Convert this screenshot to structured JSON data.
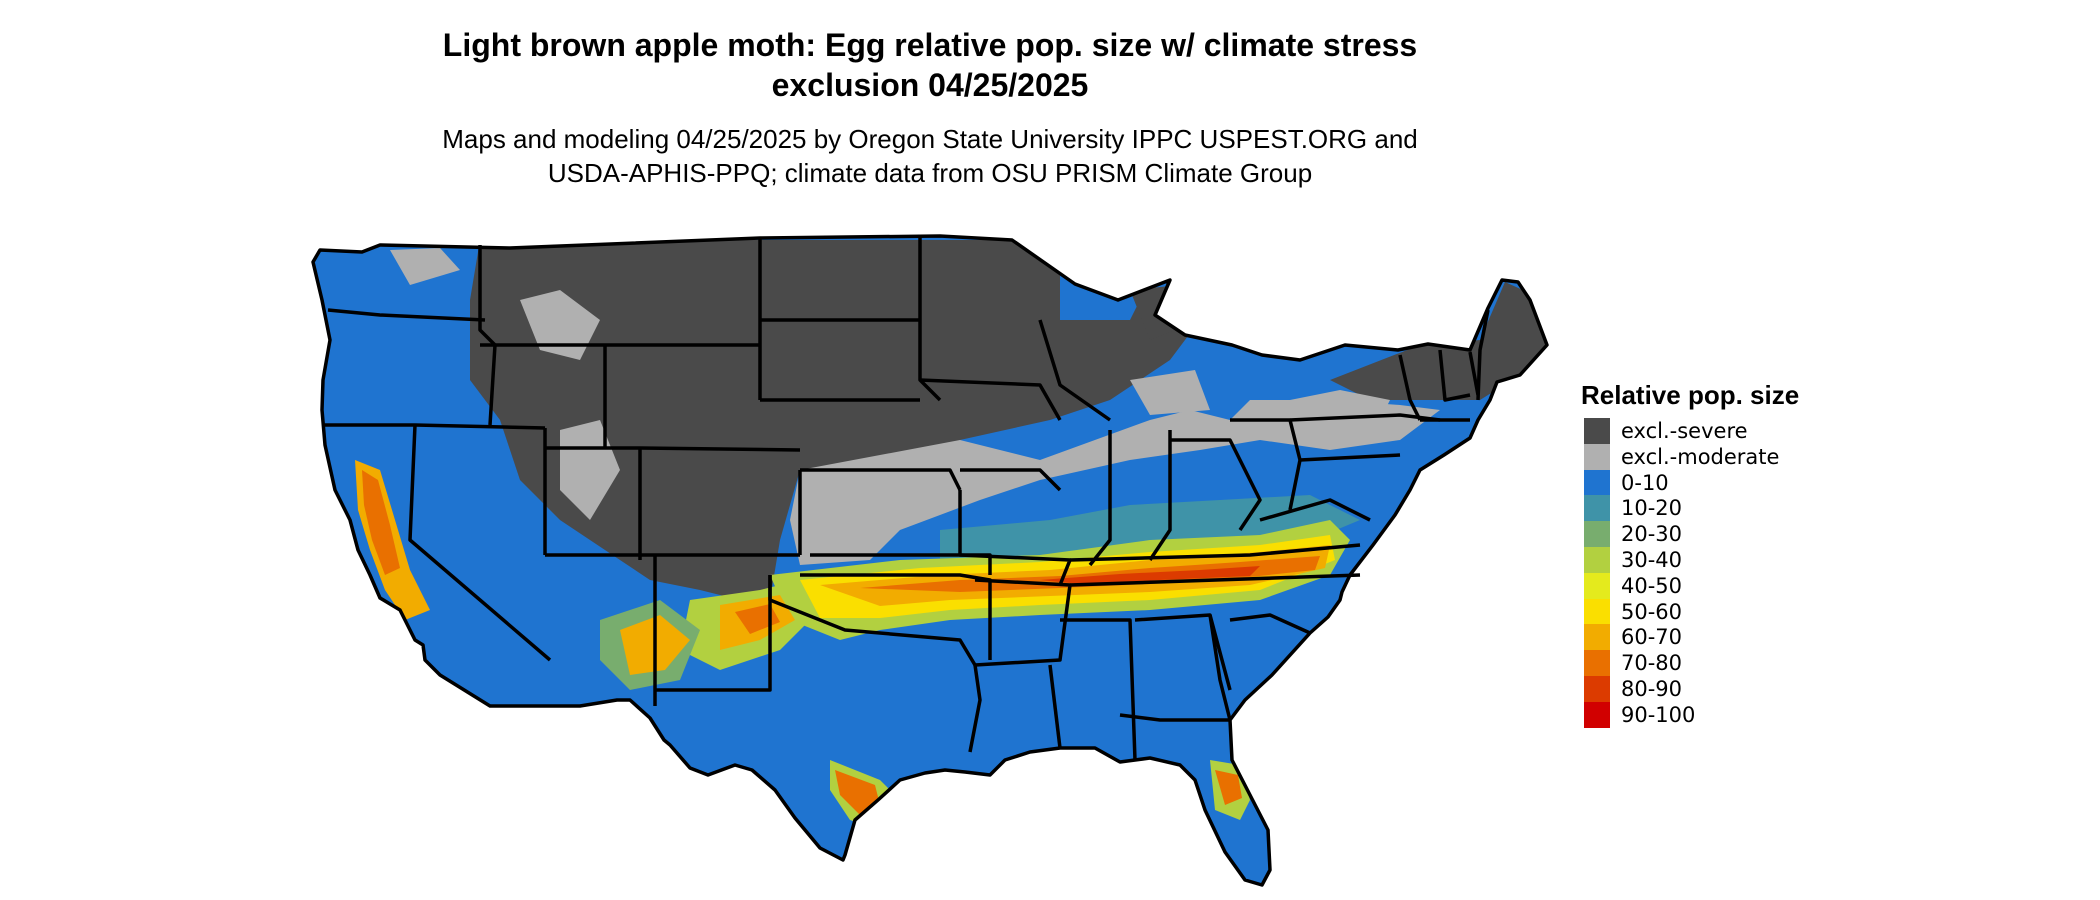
{
  "title_line1": "Light brown apple moth: Egg relative pop. size w/ climate stress",
  "title_line2": "exclusion 04/25/2025",
  "subtitle_line1": "Maps and modeling 04/25/2025 by Oregon State University IPPC USPEST.ORG and",
  "subtitle_line2": "USDA-APHIS-PPQ; climate data from OSU PRISM Climate Group",
  "legend": {
    "title": "Relative pop. size",
    "items": [
      {
        "label": "excl.-severe",
        "color": "#4a4a4a"
      },
      {
        "label": "excl.-moderate",
        "color": "#b0b0b0"
      },
      {
        "label": "0-10",
        "color": "#1f74d0"
      },
      {
        "label": "10-20",
        "color": "#3f93a8"
      },
      {
        "label": "20-30",
        "color": "#78ad6e"
      },
      {
        "label": "30-40",
        "color": "#b2d040"
      },
      {
        "label": "40-50",
        "color": "#e4ea1d"
      },
      {
        "label": "50-60",
        "color": "#fadf00"
      },
      {
        "label": "60-70",
        "color": "#f2ac00"
      },
      {
        "label": "70-80",
        "color": "#e97000"
      },
      {
        "label": "80-90",
        "color": "#dc3b00"
      },
      {
        "label": "90-100",
        "color": "#d10000"
      }
    ]
  }
}
